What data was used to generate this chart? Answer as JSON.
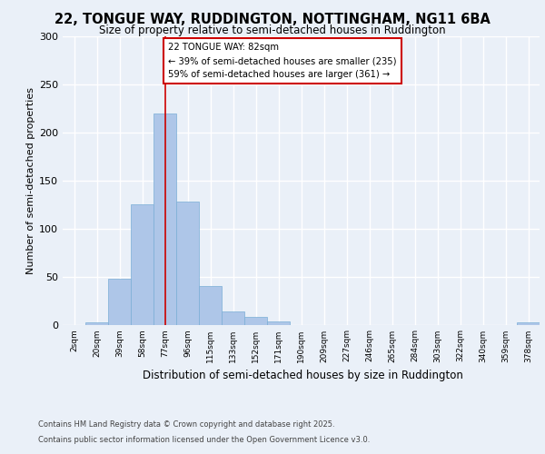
{
  "title1": "22, TONGUE WAY, RUDDINGTON, NOTTINGHAM, NG11 6BA",
  "title2": "Size of property relative to semi-detached houses in Ruddington",
  "xlabel": "Distribution of semi-detached houses by size in Ruddington",
  "ylabel": "Number of semi-detached properties",
  "bin_labels": [
    "2sqm",
    "20sqm",
    "39sqm",
    "58sqm",
    "77sqm",
    "96sqm",
    "115sqm",
    "133sqm",
    "152sqm",
    "171sqm",
    "190sqm",
    "209sqm",
    "227sqm",
    "246sqm",
    "265sqm",
    "284sqm",
    "303sqm",
    "322sqm",
    "340sqm",
    "359sqm",
    "378sqm"
  ],
  "bar_values": [
    0,
    2,
    48,
    125,
    220,
    128,
    40,
    14,
    8,
    3,
    0,
    0,
    0,
    0,
    0,
    0,
    0,
    0,
    0,
    0,
    2
  ],
  "bar_color": "#aec6e8",
  "bar_edge_color": "#7aaed6",
  "property_bin_index": 4,
  "annotation_title": "22 TONGUE WAY: 82sqm",
  "annotation_line1": "← 39% of semi-detached houses are smaller (235)",
  "annotation_line2": "59% of semi-detached houses are larger (361) →",
  "vline_color": "#cc0000",
  "annotation_box_color": "#ffffff",
  "annotation_box_edge_color": "#cc0000",
  "footer1": "Contains HM Land Registry data © Crown copyright and database right 2025.",
  "footer2": "Contains public sector information licensed under the Open Government Licence v3.0.",
  "bg_color": "#eaf0f8",
  "plot_bg_color": "#eaf0f8",
  "grid_color": "#ffffff",
  "ylim": [
    0,
    300
  ],
  "yticks": [
    0,
    50,
    100,
    150,
    200,
    250,
    300
  ]
}
